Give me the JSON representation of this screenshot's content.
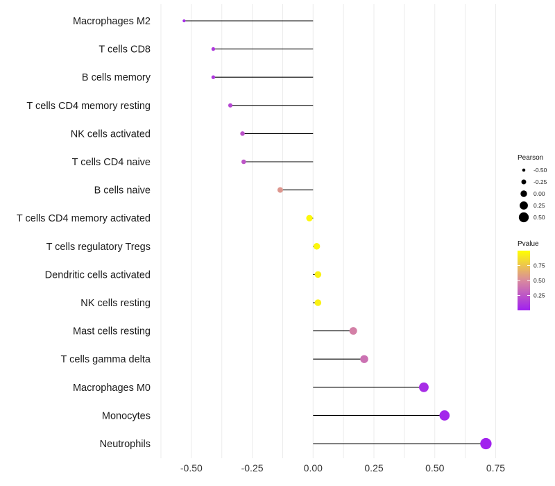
{
  "chart_data": {
    "type": "lollipop",
    "title": "",
    "xlabel": "",
    "ylabel": "",
    "xlim": [
      -0.625,
      0.8
    ],
    "x_ticks": [
      -0.5,
      -0.25,
      0.0,
      0.25,
      0.5,
      0.75
    ],
    "x_tick_labels": [
      "-0.50",
      "-0.25",
      "0.00",
      "0.25",
      "0.50",
      "0.75"
    ],
    "grid": "vertical",
    "categories": [
      "Macrophages M2",
      "T cells CD8",
      "B cells memory",
      "T cells CD4 memory resting",
      "NK cells activated",
      "T cells CD4 naive",
      "B cells naive",
      "T cells CD4 memory activated",
      "T cells regulatory  Tregs ",
      "Dendritic cells activated",
      "NK cells resting",
      "Mast cells resting",
      "T cells gamma delta",
      "Macrophages M0",
      "Monocytes",
      "Neutrophils"
    ],
    "pearson": [
      -0.53,
      -0.41,
      -0.41,
      -0.34,
      -0.29,
      -0.285,
      -0.135,
      -0.015,
      0.015,
      0.02,
      0.02,
      0.165,
      0.21,
      0.455,
      0.54,
      0.71
    ],
    "pvalue": [
      0.05,
      0.12,
      0.12,
      0.18,
      0.24,
      0.25,
      0.55,
      0.97,
      0.96,
      0.94,
      0.94,
      0.45,
      0.38,
      0.06,
      0.03,
      0.01
    ],
    "legend": {
      "size_title": "Pearson",
      "size_values": [
        -0.5,
        -0.25,
        0.0,
        0.25,
        0.5
      ],
      "size_labels": [
        "-0.50",
        "-0.25",
        "0.00",
        "0.25",
        "0.50"
      ],
      "color_title": "Pvalue",
      "color_ticks": [
        0.75,
        0.5,
        0.25
      ],
      "color_labels": [
        "0.75",
        "0.50",
        "0.25"
      ],
      "placement": "right"
    },
    "colors": {
      "low": "#a020f0",
      "mid": "#d98a9e",
      "high": "#ffff00",
      "segment": "#000000",
      "grid": "#ebebeb"
    }
  }
}
